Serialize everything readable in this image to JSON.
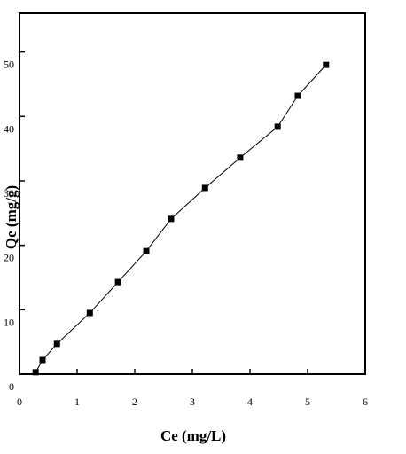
{
  "chart_data": {
    "type": "line",
    "x_label": "Ce (mg/L)",
    "y_label": "Qe (mg/g)",
    "series": [
      {
        "name": "Qe",
        "color": "#000000",
        "x": [
          0.28,
          0.4,
          0.65,
          1.22,
          1.71,
          2.2,
          2.63,
          3.22,
          3.83,
          4.48,
          4.83,
          5.32
        ],
        "values": [
          0.3,
          2.2,
          4.7,
          9.5,
          14.3,
          19.1,
          24.1,
          28.9,
          33.6,
          38.4,
          43.2,
          48.0
        ]
      }
    ],
    "xlim": [
      0,
      6
    ],
    "xticks": [
      0,
      1,
      2,
      3,
      4,
      5,
      6
    ],
    "ylim": [
      0,
      56
    ],
    "yticks": [
      0,
      10,
      20,
      30,
      40,
      50
    ]
  }
}
